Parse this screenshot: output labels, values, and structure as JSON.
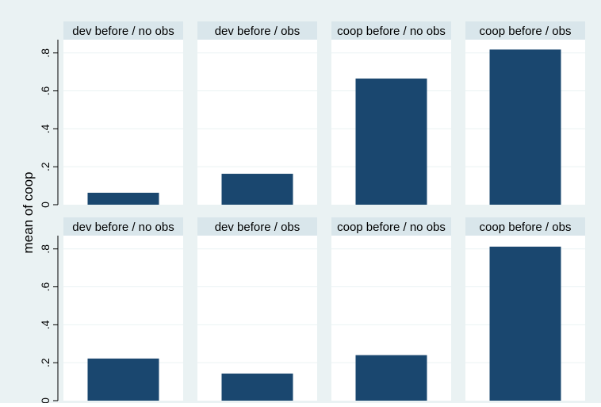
{
  "colors": {
    "outer_bg": "#eaf2f3",
    "plot_bg": "#ffffff",
    "header_bg": "#d9e6eb",
    "bar": "#1a476f",
    "grid": "#eaf2f3",
    "text": "#000000"
  },
  "chart_data": {
    "type": "bar",
    "ylabel": "mean of coop",
    "ylim": [
      0,
      0.87
    ],
    "yticks": [
      {
        "value": 0,
        "label": "0"
      },
      {
        "value": 0.2,
        "label": ".2"
      },
      {
        "value": 0.4,
        "label": ".4"
      },
      {
        "value": 0.6,
        "label": ".6"
      },
      {
        "value": 0.8,
        "label": ".8"
      }
    ],
    "grid": true,
    "panels": [
      {
        "title": "dev before /  no obs",
        "value": 0.063
      },
      {
        "title": "dev before / obs",
        "value": 0.163
      },
      {
        "title": "coop before / no obs",
        "value": 0.665
      },
      {
        "title": "coop before / obs",
        "value": 0.818
      },
      {
        "title": "dev before / no obs",
        "value": 0.222
      },
      {
        "title": "dev before / obs",
        "value": 0.143
      },
      {
        "title": "coop before / no obs",
        "value": 0.24
      },
      {
        "title": "coop before / obs",
        "value": 0.812
      }
    ]
  }
}
